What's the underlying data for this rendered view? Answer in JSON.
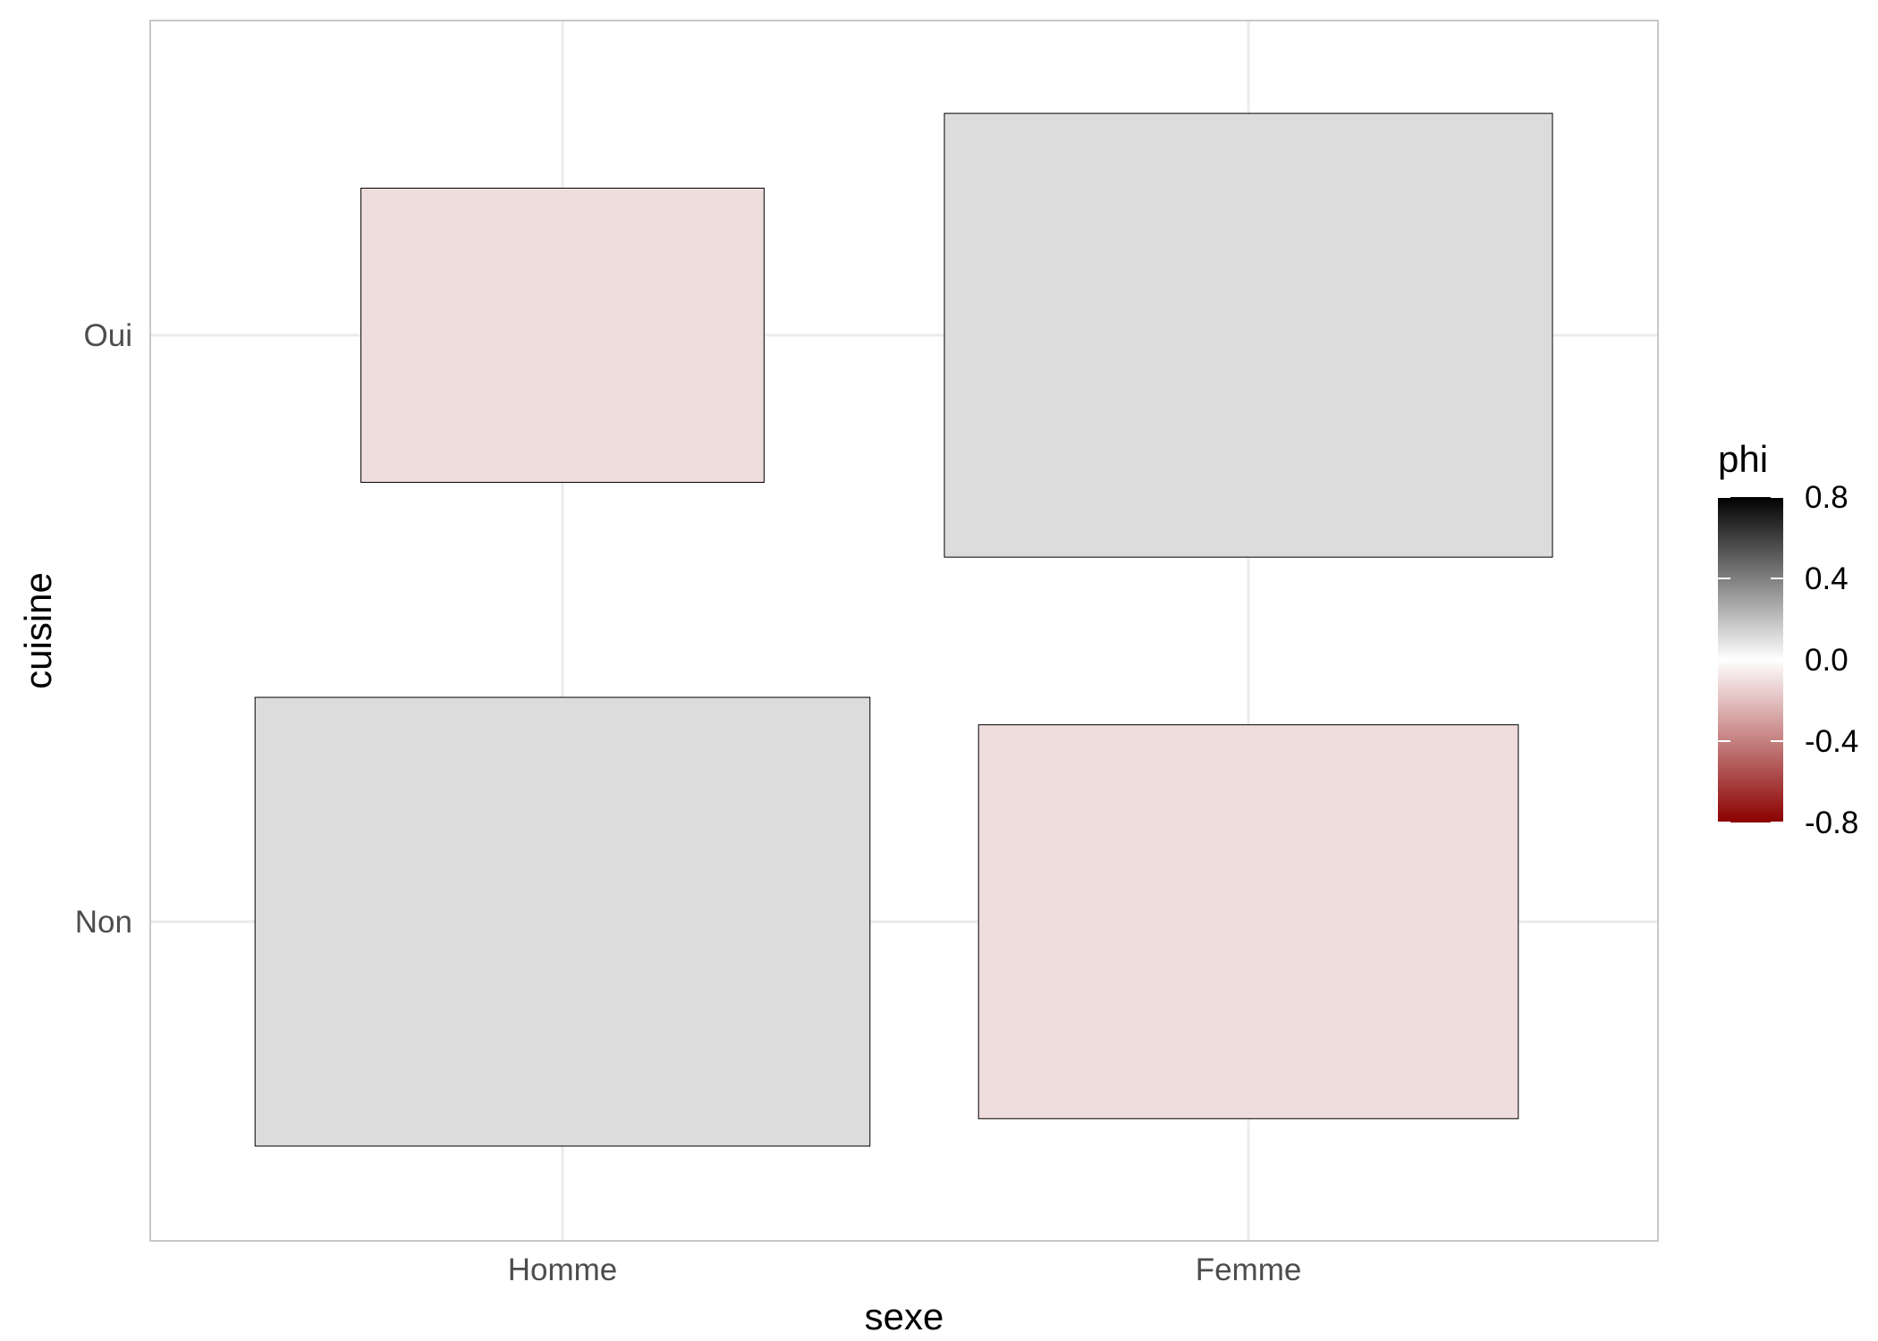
{
  "chart_data": {
    "type": "mosaic",
    "title": "",
    "xlabel": "sexe",
    "ylabel": "cuisine",
    "categories_x": [
      "Homme",
      "Femme"
    ],
    "categories_y": [
      "Oui",
      "Non"
    ],
    "cells": [
      {
        "x": "Homme",
        "y": "Oui",
        "width": 0.59,
        "height": 0.59,
        "phi": -0.15
      },
      {
        "x": "Femme",
        "y": "Oui",
        "width": 0.89,
        "height": 0.89,
        "phi": 0.15
      },
      {
        "x": "Homme",
        "y": "Non",
        "width": 0.9,
        "height": 0.9,
        "phi": 0.15
      },
      {
        "x": "Femme",
        "y": "Non",
        "width": 0.79,
        "height": 0.79,
        "phi": -0.15
      }
    ],
    "legend": {
      "title": "phi",
      "ticks": [
        0.8,
        0.4,
        0.0,
        -0.4,
        -0.8
      ],
      "tick_labels": [
        "0.8",
        "0.4",
        "0.0",
        "-0.4",
        "-0.8"
      ],
      "range": [
        -0.8,
        0.8
      ],
      "position": "right"
    },
    "colors": {
      "low": "#8b0000",
      "mid": "#ffffff",
      "high": "#000000",
      "grid": "#ebebeb",
      "panel_border": "#c8c8c8",
      "cell_border": "#000000"
    },
    "grid": true
  }
}
